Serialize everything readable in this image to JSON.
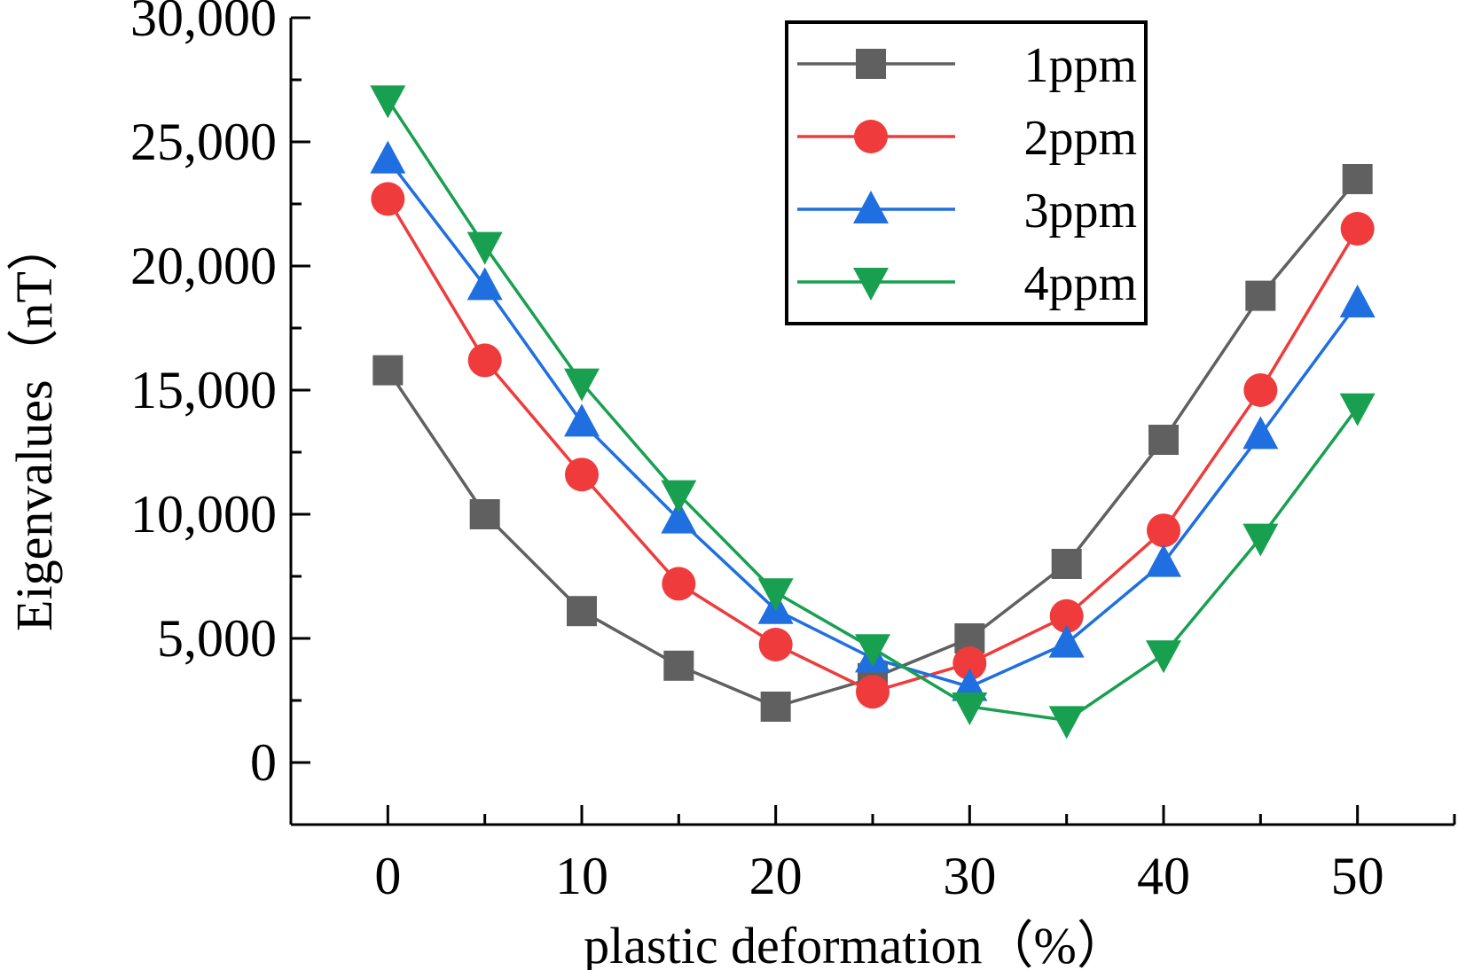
{
  "chart_data": {
    "type": "line",
    "title": "",
    "xlabel": "plastic deformation（%）",
    "ylabel": "Eigenvalues（nT）",
    "xlim": [
      -5,
      55
    ],
    "ylim": [
      -2500,
      30000
    ],
    "xticks": [
      0,
      10,
      20,
      30,
      40,
      50
    ],
    "xtick_labels": [
      "0",
      "10",
      "20",
      "30",
      "40",
      "50"
    ],
    "yticks": [
      0,
      5000,
      10000,
      15000,
      20000,
      25000,
      30000
    ],
    "ytick_labels": [
      "0",
      "5,000",
      "10,000",
      "15,000",
      "20,000",
      "25,000",
      "30,000"
    ],
    "grid": false,
    "legend": "top-right",
    "x": [
      0,
      5,
      10,
      15,
      20,
      25,
      30,
      35,
      40,
      45,
      50
    ],
    "series": [
      {
        "name": "1ppm",
        "color": "#606060",
        "marker": "square",
        "values": [
          15800,
          10000,
          6100,
          3900,
          2250,
          3400,
          5000,
          8000,
          13000,
          18800,
          23500
        ]
      },
      {
        "name": "2ppm",
        "color": "#ef3b3b",
        "marker": "circle",
        "values": [
          22700,
          16200,
          11600,
          7200,
          4750,
          2850,
          4000,
          5900,
          9350,
          15000,
          21500
        ]
      },
      {
        "name": "3ppm",
        "color": "#1f6fe0",
        "marker": "triangle-up",
        "values": [
          24300,
          19200,
          13700,
          9800,
          6150,
          4200,
          3050,
          4800,
          8050,
          13200,
          18500
        ]
      },
      {
        "name": "4ppm",
        "color": "#18a050",
        "marker": "triangle-down",
        "values": [
          26700,
          20800,
          15300,
          10800,
          6850,
          4600,
          2250,
          1700,
          4350,
          9050,
          14300
        ]
      }
    ]
  }
}
